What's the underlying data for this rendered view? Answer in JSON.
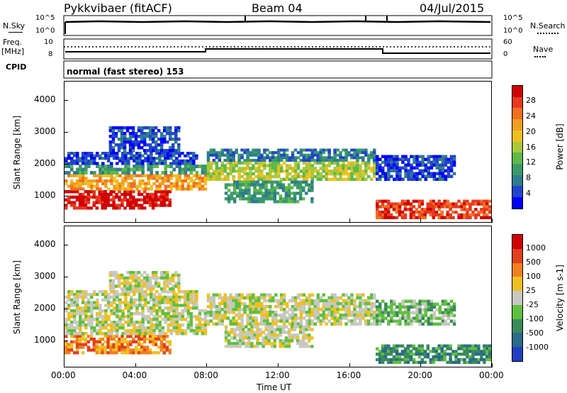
{
  "header": {
    "radar_label": "Pykkvibaer (fitACF)",
    "beam_label": "Beam 04",
    "date_label": "04/Jul/2015"
  },
  "top_panels": {
    "nsky_label": "N.Sky",
    "nsky_ticks": [
      "10^5",
      "10^0"
    ],
    "nsearch_label": "N.Search",
    "nsearch_ticks": [
      "10^5",
      "10^0"
    ],
    "freq_label": "Freq.",
    "freq_unit": "[MHz]",
    "freq_ticks": [
      "10",
      "8"
    ],
    "nave_label": "Nave",
    "nave_ticks": [
      "60",
      "0"
    ],
    "cpid_label": "CPID",
    "cpid_value": "normal (fast stereo) 153"
  },
  "colors": {
    "scatter_bg": "#ffffff",
    "ground_scatter": "#c8c8c0"
  },
  "chart_data": [
    {
      "type": "heatmap",
      "name": "power-panel",
      "ylabel": "Slant Range [km]",
      "yticks": [
        "4000",
        "3000",
        "2000",
        "1000"
      ],
      "ylim": [
        200,
        4600
      ],
      "xlim": [
        0,
        24
      ],
      "colorbar_label": "Power [dB]",
      "colorbar_ticks": [
        "28",
        "24",
        "20",
        "16",
        "12",
        "8",
        "4"
      ],
      "colorbar_colors": [
        "#0000ff",
        "#2244cc",
        "#2e7d8c",
        "#3a9a6a",
        "#5fb84a",
        "#a8c83c",
        "#f0c020",
        "#f0a020",
        "#f07020",
        "#e83820",
        "#d00000"
      ],
      "bands": [
        {
          "t0": 0.0,
          "t1": 6.0,
          "r0": 600,
          "r1": 1200,
          "level": 10
        },
        {
          "t0": 0.0,
          "t1": 8.0,
          "r0": 1200,
          "r1": 1700,
          "level": 7
        },
        {
          "t0": 0.0,
          "t1": 8.0,
          "r0": 1700,
          "r1": 2000,
          "level": 3
        },
        {
          "t0": 0.0,
          "t1": 7.5,
          "r0": 2000,
          "r1": 2400,
          "level": 1
        },
        {
          "t0": 2.5,
          "t1": 6.5,
          "r0": 2400,
          "r1": 3200,
          "level": 1
        },
        {
          "t0": 8.0,
          "t1": 17.5,
          "r0": 1500,
          "r1": 2100,
          "level": 5
        },
        {
          "t0": 8.0,
          "t1": 17.5,
          "r0": 2100,
          "r1": 2500,
          "level": 2
        },
        {
          "t0": 9.0,
          "t1": 14.0,
          "r0": 800,
          "r1": 1500,
          "level": 3
        },
        {
          "t0": 17.5,
          "t1": 24.0,
          "r0": 300,
          "r1": 900,
          "level": 9
        },
        {
          "t0": 17.5,
          "t1": 22.0,
          "r0": 1500,
          "r1": 2300,
          "level": 1
        }
      ]
    },
    {
      "type": "heatmap",
      "name": "velocity-panel",
      "ylabel": "Slant Range [km]",
      "yticks": [
        "4000",
        "3000",
        "2000",
        "1000"
      ],
      "ylim": [
        200,
        4600
      ],
      "xlim": [
        0,
        24
      ],
      "xlabel": "Time UT",
      "xticks": [
        "00:00",
        "04:00",
        "08:00",
        "12:00",
        "16:00",
        "20:00",
        "00:00"
      ],
      "colorbar_label": "Velocity [m s-1]",
      "colorbar_ticks": [
        "1000",
        "500",
        "100",
        "25",
        "-25",
        "-100",
        "-500",
        "-1000"
      ],
      "colorbar_colors": [
        "#2040c0",
        "#2a6a8a",
        "#3a8a5a",
        "#60c040",
        "#c8c8c0",
        "#f0c020",
        "#f08020",
        "#e04020",
        "#d00000"
      ],
      "bands": [
        {
          "t0": 0.0,
          "t1": 6.0,
          "r0": 600,
          "r1": 1200,
          "level": 6
        },
        {
          "t0": 0.0,
          "t1": 8.0,
          "r0": 1200,
          "r1": 2000,
          "level": 4
        },
        {
          "t0": 0.0,
          "t1": 7.5,
          "r0": 2000,
          "r1": 2600,
          "level": 4
        },
        {
          "t0": 2.5,
          "t1": 6.5,
          "r0": 2600,
          "r1": 3200,
          "level": 4
        },
        {
          "t0": 8.0,
          "t1": 17.5,
          "r0": 1500,
          "r1": 2500,
          "level": 4
        },
        {
          "t0": 9.0,
          "t1": 14.0,
          "r0": 800,
          "r1": 1500,
          "level": 4
        },
        {
          "t0": 17.5,
          "t1": 24.0,
          "r0": 300,
          "r1": 900,
          "level": 2
        },
        {
          "t0": 17.5,
          "t1": 22.0,
          "r0": 1500,
          "r1": 2300,
          "level": 3
        }
      ]
    }
  ]
}
